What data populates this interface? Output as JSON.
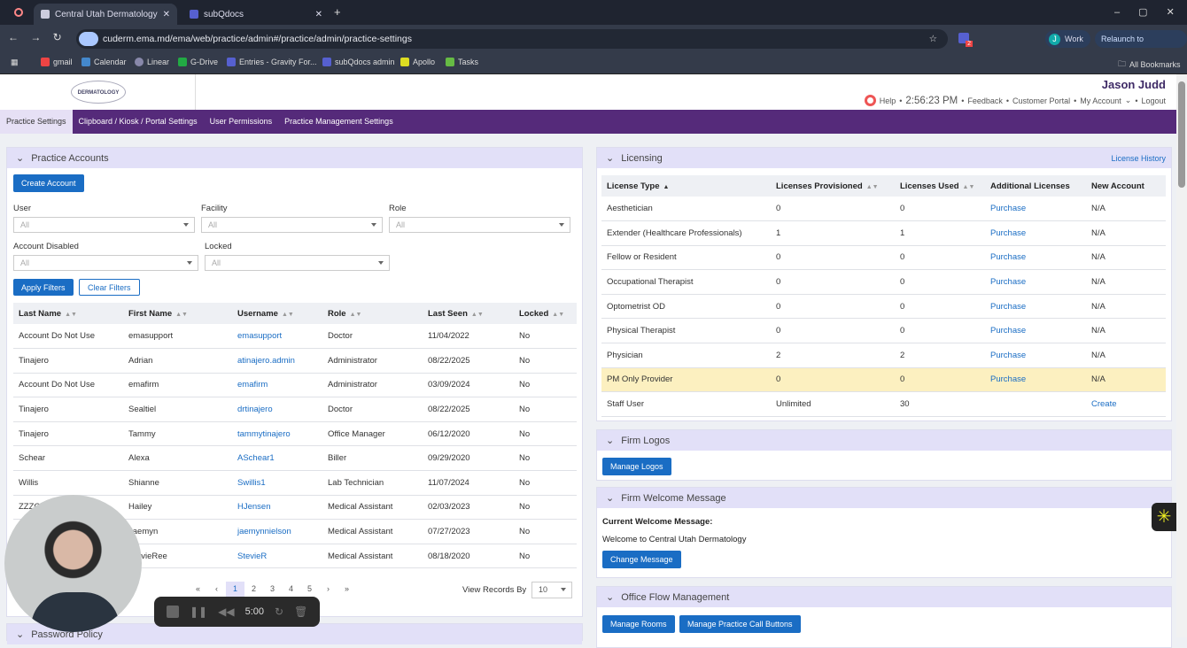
{
  "browser": {
    "tabs": [
      {
        "title": "Central Utah Dermatology"
      },
      {
        "title": "subQdocs"
      }
    ],
    "url": "cuderm.ema.md/ema/web/practice/admin#/practice/admin/practice-settings",
    "profile": "Work",
    "profile_initial": "J",
    "relaunch": "Relaunch to update",
    "ext_badge": "2",
    "bookmarks": [
      "gmail",
      "Calendar",
      "Linear",
      "G-Drive",
      "Entries - Gravity For...",
      "subQdocs admin",
      "Apollo",
      "Tasks"
    ],
    "all_bookmarks": "All Bookmarks"
  },
  "header": {
    "logo": "DERMATOLOGY",
    "user": "Jason Judd",
    "help": "Help",
    "time": "2:56:23 PM",
    "feedback": "Feedback",
    "portal": "Customer Portal",
    "account": "My Account",
    "logout": "Logout"
  },
  "nav": [
    "Practice Settings",
    "Clipboard / Kiosk / Portal Settings",
    "User Permissions",
    "Practice Management Settings"
  ],
  "accounts": {
    "title": "Practice Accounts",
    "create": "Create Account",
    "filters": {
      "user": "User",
      "facility": "Facility",
      "role": "Role",
      "disabled": "Account Disabled",
      "locked": "Locked",
      "all": "All"
    },
    "apply": "Apply Filters",
    "clear": "Clear Filters",
    "columns": [
      "Last Name",
      "First Name",
      "Username",
      "Role",
      "Last Seen",
      "Locked"
    ],
    "rows": [
      [
        "Account Do Not Use",
        "emasupport",
        "emasupport",
        "Doctor",
        "11/04/2022",
        "No"
      ],
      [
        "Tinajero",
        "Adrian",
        "atinajero.admin",
        "Administrator",
        "08/22/2025",
        "No"
      ],
      [
        "Account Do Not Use",
        "emafirm",
        "emafirm",
        "Administrator",
        "03/09/2024",
        "No"
      ],
      [
        "Tinajero",
        "Sealtiel",
        "drtinajero",
        "Doctor",
        "08/22/2025",
        "No"
      ],
      [
        "Tinajero",
        "Tammy",
        "tammytinajero",
        "Office Manager",
        "06/12/2020",
        "No"
      ],
      [
        "Schear",
        "Alexa",
        "ASchear1",
        "Biller",
        "09/29/2020",
        "No"
      ],
      [
        "Willis",
        "Shianne",
        "Swillis1",
        "Lab Technician",
        "11/07/2024",
        "No"
      ],
      [
        "ZZZG",
        "Hailey",
        "HJensen",
        "Medical Assistant",
        "02/03/2023",
        "No"
      ],
      [
        "",
        "Jaemyn",
        "jaemynnielson",
        "Medical Assistant",
        "07/27/2023",
        "No"
      ],
      [
        "",
        "StevieRee",
        "StevieR",
        "Medical Assistant",
        "08/18/2020",
        "No"
      ]
    ],
    "pages": [
      "«",
      "‹",
      "1",
      "2",
      "3",
      "4",
      "5",
      "›",
      "»"
    ],
    "view_by": "View Records By",
    "view_value": "10"
  },
  "password_policy": "Password Policy",
  "licensing": {
    "title": "Licensing",
    "history": "License History",
    "columns": [
      "License Type",
      "Licenses Provisioned",
      "Licenses Used",
      "Additional Licenses",
      "New Account"
    ],
    "rows": [
      [
        "Aesthetician",
        "0",
        "0",
        "Purchase",
        "N/A"
      ],
      [
        "Extender (Healthcare Professionals)",
        "1",
        "1",
        "Purchase",
        "N/A"
      ],
      [
        "Fellow or Resident",
        "0",
        "0",
        "Purchase",
        "N/A"
      ],
      [
        "Occupational Therapist",
        "0",
        "0",
        "Purchase",
        "N/A"
      ],
      [
        "Optometrist OD",
        "0",
        "0",
        "Purchase",
        "N/A"
      ],
      [
        "Physical Therapist",
        "0",
        "0",
        "Purchase",
        "N/A"
      ],
      [
        "Physician",
        "2",
        "2",
        "Purchase",
        "N/A"
      ],
      [
        "PM Only Provider",
        "0",
        "0",
        "Purchase",
        "N/A"
      ],
      [
        "Staff User",
        "Unlimited",
        "30",
        "",
        "Create"
      ]
    ]
  },
  "logos": {
    "title": "Firm Logos",
    "button": "Manage Logos"
  },
  "welcome": {
    "title": "Firm Welcome Message",
    "label": "Current Welcome Message:",
    "message": "Welcome to Central Utah Dermatology",
    "button": "Change Message"
  },
  "office_flow": {
    "title": "Office Flow Management",
    "rooms": "Manage Rooms",
    "call": "Manage Practice Call Buttons"
  },
  "recorder": {
    "time": "5:00"
  },
  "colors": {
    "nav": "#552a7a",
    "primary": "#1a6dc4",
    "panel_header": "#e2e0f8",
    "highlight": "#fcf0c0"
  }
}
